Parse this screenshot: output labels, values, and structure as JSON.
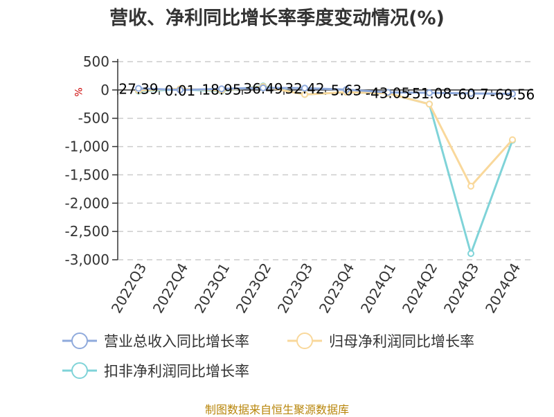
{
  "title": "营收、净利同比增长率季度变动情况(%)",
  "source": "制图数据来自恒生聚源数据库",
  "colors": {
    "revenue": "#8faadc",
    "net_profit": "#f9d89b",
    "deducted_profit": "#7fd3d8",
    "axis": "#333333",
    "grid": "#cccccc",
    "unit": "#cc0000"
  },
  "chart_data": {
    "type": "line",
    "title": "营收、净利同比增长率季度变动情况(%)",
    "unit_label": "%",
    "categories": [
      "2022Q3",
      "2022Q4",
      "2023Q1",
      "2023Q2",
      "2023Q3",
      "2023Q4",
      "2024Q1",
      "2024Q2",
      "2024Q3",
      "2024Q4"
    ],
    "y_ticks": [
      500,
      0,
      -500,
      -1000,
      -1500,
      -2000,
      -2500,
      -3000
    ],
    "y_tick_labels": [
      "500",
      "0",
      "-500",
      "-1,000",
      "-1,500",
      "-2,000",
      "-2,500",
      "-3,000"
    ],
    "ylim": [
      -3000,
      500
    ],
    "grid": true,
    "legend_position": "bottom",
    "series": [
      {
        "name": "营业总收入同比增长率",
        "color_key": "revenue",
        "values": [
          27.39,
          0.01,
          18.95,
          36.49,
          32.42,
          5.63,
          -43.05,
          -51.08,
          -60.7,
          -69.56
        ],
        "labels": [
          "27.39",
          "0.01",
          "18.95",
          "36.49",
          "32.42",
          "5.63",
          "-43.05",
          "-51.08",
          "-60.7",
          "-69.56"
        ]
      },
      {
        "name": "归母净利润同比增长率",
        "color_key": "net_profit",
        "values": [
          -10,
          20,
          -10,
          60,
          -80,
          -40,
          -60,
          -250,
          -1700,
          -880
        ]
      },
      {
        "name": "扣非净利润同比增长率",
        "color_key": "deducted_profit",
        "values": [
          -20,
          10,
          -20,
          70,
          -80,
          -40,
          -60,
          -250,
          -2890,
          -890
        ]
      }
    ]
  }
}
